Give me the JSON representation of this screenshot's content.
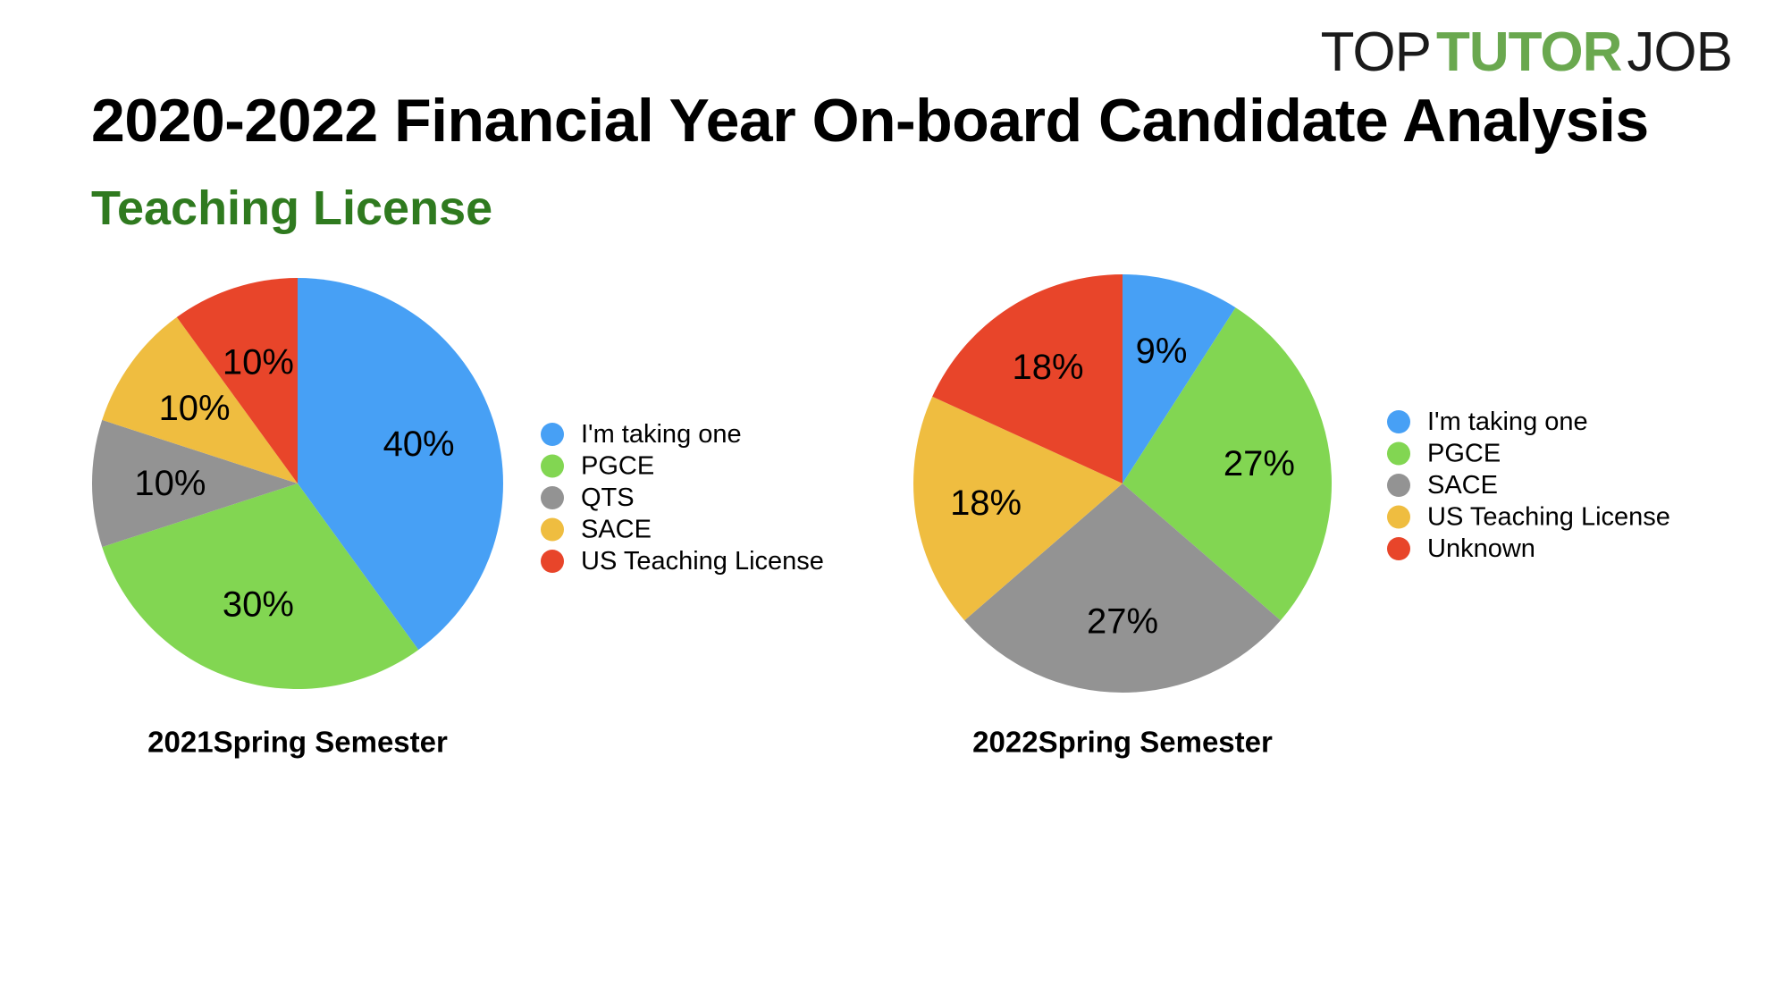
{
  "logo": {
    "part1": "TOP",
    "part2": "TUTOR",
    "part3": "JOB"
  },
  "title": "2020-2022 Financial Year On-board Candidate Analysis",
  "subtitle": "Teaching License",
  "chart_data": [
    {
      "type": "pie",
      "title": "2021Spring Semester",
      "legend_position": "right",
      "slices": [
        {
          "label": "I'm taking one",
          "value": 40,
          "display": "40%",
          "color": "#47a0f5"
        },
        {
          "label": "PGCE",
          "value": 30,
          "display": "30%",
          "color": "#82d652"
        },
        {
          "label": "QTS",
          "value": 10,
          "display": "10%",
          "color": "#939393"
        },
        {
          "label": "SACE",
          "value": 10,
          "display": "10%",
          "color": "#efbd40"
        },
        {
          "label": "US Teaching License",
          "value": 10,
          "display": "10%",
          "color": "#e8452a"
        }
      ]
    },
    {
      "type": "pie",
      "title": "2022Spring Semester",
      "legend_position": "right",
      "slices": [
        {
          "label": "I'm taking one",
          "value": 9,
          "display": "9%",
          "color": "#47a0f5"
        },
        {
          "label": "PGCE",
          "value": 27,
          "display": "27%",
          "color": "#82d652"
        },
        {
          "label": "SACE",
          "value": 27,
          "display": "27%",
          "color": "#939393"
        },
        {
          "label": "US Teaching License",
          "value": 18,
          "display": "18%",
          "color": "#efbd40"
        },
        {
          "label": "Unknown",
          "value": 18,
          "display": "18%",
          "color": "#e8452a"
        }
      ]
    }
  ]
}
